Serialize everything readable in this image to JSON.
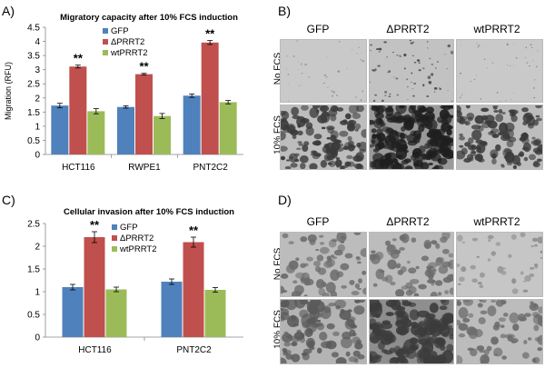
{
  "panels": {
    "A": {
      "letter": "A)"
    },
    "B": {
      "letter": "B)"
    },
    "C": {
      "letter": "C)"
    },
    "D": {
      "letter": "D)"
    }
  },
  "chart_data": [
    {
      "type": "bar",
      "panel": "A",
      "title": "Migratory capacity after 10% FCS induction",
      "ylabel": "Migration (RFU)",
      "ylim": [
        0,
        4.5
      ],
      "yticks": [
        "0",
        "0.5",
        "1",
        "1.5",
        "2",
        "2.5",
        "3",
        "3.5",
        "4",
        "4.5"
      ],
      "categories": [
        "HCT116",
        "RWPE1",
        "PNT2C2"
      ],
      "series": [
        {
          "name": "GFP",
          "color": "#4F81BD",
          "values": [
            1.73,
            1.68,
            2.08
          ],
          "errors": [
            0.08,
            0.04,
            0.06
          ]
        },
        {
          "name": "ΔPRRT2",
          "color": "#C0504D",
          "values": [
            3.11,
            2.84,
            3.96
          ],
          "errors": [
            0.05,
            0.03,
            0.07
          ]
        },
        {
          "name": "wtPRRT2",
          "color": "#9BBB59",
          "values": [
            1.53,
            1.36,
            1.85
          ],
          "errors": [
            0.09,
            0.09,
            0.06
          ]
        }
      ],
      "significance": [
        {
          "category": "HCT116",
          "series": "ΔPRRT2",
          "label": "**"
        },
        {
          "category": "RWPE1",
          "series": "ΔPRRT2",
          "label": "**"
        },
        {
          "category": "PNT2C2",
          "series": "ΔPRRT2",
          "label": "**"
        }
      ],
      "legend_position": "top-left"
    },
    {
      "type": "bar",
      "panel": "C",
      "title": "Cellular invasion after 10% FCS induction",
      "ylabel": "",
      "ylim": [
        0,
        2.5
      ],
      "yticks": [
        "0",
        "0.5",
        "1",
        "1.5",
        "2",
        "2.5"
      ],
      "categories": [
        "HCT116",
        "PNT2C2"
      ],
      "series": [
        {
          "name": "GFP",
          "color": "#4F81BD",
          "values": [
            1.1,
            1.22
          ],
          "errors": [
            0.06,
            0.06
          ]
        },
        {
          "name": "ΔPRRT2",
          "color": "#C0504D",
          "values": [
            2.2,
            2.09
          ],
          "errors": [
            0.12,
            0.11
          ]
        },
        {
          "name": "wtPRRT2",
          "color": "#9BBB59",
          "values": [
            1.05,
            1.04
          ],
          "errors": [
            0.05,
            0.05
          ]
        }
      ],
      "significance": [
        {
          "category": "HCT116",
          "series": "ΔPRRT2",
          "label": "**"
        },
        {
          "category": "PNT2C2",
          "series": "ΔPRRT2",
          "label": "**"
        }
      ],
      "legend_position": "top-left"
    }
  ],
  "micrographs": {
    "B": {
      "columns": [
        "GFP",
        "ΔPRRT2",
        "wtPRRT2"
      ],
      "rows": [
        "No FCS",
        "10% FCS"
      ]
    },
    "D": {
      "columns": [
        "GFP",
        "ΔPRRT2",
        "wtPRRT2"
      ],
      "rows": [
        "No FCS",
        "10% FCS"
      ]
    }
  }
}
